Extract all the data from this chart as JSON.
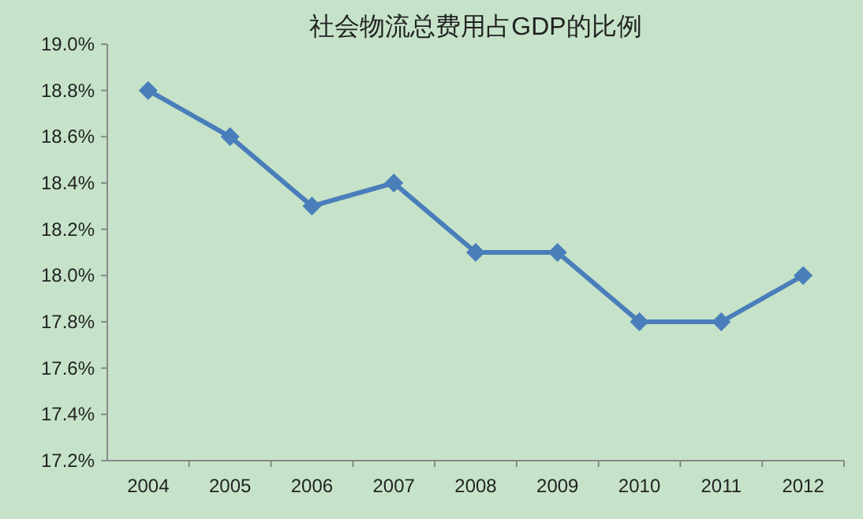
{
  "chart_data": {
    "type": "line",
    "title": "社会物流总费用占GDP的比例",
    "categories": [
      "2004",
      "2005",
      "2006",
      "2007",
      "2008",
      "2009",
      "2010",
      "2011",
      "2012"
    ],
    "values": [
      18.8,
      18.6,
      18.3,
      18.4,
      18.1,
      18.1,
      17.8,
      17.8,
      18.0
    ],
    "color": "#4a7ebb",
    "marker": "diamond",
    "ylim": [
      17.2,
      19.0
    ],
    "yticks": [
      {
        "value": 17.2,
        "label": "17.2%"
      },
      {
        "value": 17.4,
        "label": "17.4%"
      },
      {
        "value": 17.6,
        "label": "17.6%"
      },
      {
        "value": 17.8,
        "label": "17.8%"
      },
      {
        "value": 18.0,
        "label": "18.0%"
      },
      {
        "value": 18.2,
        "label": "18.2%"
      },
      {
        "value": 18.4,
        "label": "18.4%"
      },
      {
        "value": 18.6,
        "label": "18.6%"
      },
      {
        "value": 18.8,
        "label": "18.8%"
      },
      {
        "value": 19.0,
        "label": "19.0%"
      }
    ]
  }
}
